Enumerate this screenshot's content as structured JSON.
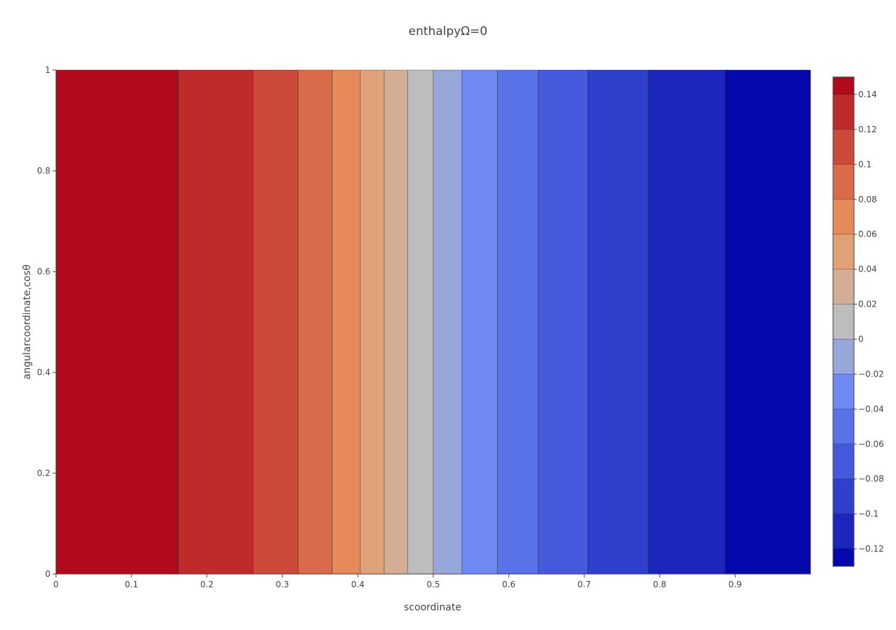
{
  "chart_data": {
    "type": "heatmap",
    "subtype": "contour",
    "title": "enthalpyΩ=0",
    "xlabel": "scoordinate",
    "ylabel": "angularcoordinate,cosθ",
    "xlim": [
      0,
      1
    ],
    "ylim": [
      0,
      1
    ],
    "x_ticks": [
      "0",
      "0.1",
      "0.2",
      "0.3",
      "0.4",
      "0.5",
      "0.6",
      "0.7",
      "0.8",
      "0.9"
    ],
    "x_tick_values": [
      0,
      0.1,
      0.2,
      0.3,
      0.4,
      0.5,
      0.6,
      0.7,
      0.8,
      0.9
    ],
    "y_ticks": [
      "0",
      "0.2",
      "0.4",
      "0.6",
      "0.8",
      "1"
    ],
    "y_tick_values": [
      0,
      0.2,
      0.4,
      0.6,
      0.8,
      1
    ],
    "bands": [
      {
        "x0": 0,
        "x1": 0.162,
        "color": "#b10a1c"
      },
      {
        "x0": 0.162,
        "x1": 0.261,
        "color": "#bf2a2b"
      },
      {
        "x0": 0.261,
        "x1": 0.321,
        "color": "#cc4a3a"
      },
      {
        "x0": 0.321,
        "x1": 0.366,
        "color": "#d96b4a"
      },
      {
        "x0": 0.366,
        "x1": 0.403,
        "color": "#e68a5a"
      },
      {
        "x0": 0.403,
        "x1": 0.435,
        "color": "#e0a176"
      },
      {
        "x0": 0.435,
        "x1": 0.466,
        "color": "#d3ae94"
      },
      {
        "x0": 0.466,
        "x1": 0.5,
        "color": "#bdbdbd"
      },
      {
        "x0": 0.5,
        "x1": 0.538,
        "color": "#97a7da"
      },
      {
        "x0": 0.538,
        "x1": 0.585,
        "color": "#6e8af2"
      },
      {
        "x0": 0.585,
        "x1": 0.639,
        "color": "#5872e8"
      },
      {
        "x0": 0.639,
        "x1": 0.705,
        "color": "#4459dc"
      },
      {
        "x0": 0.705,
        "x1": 0.785,
        "color": "#2f40cd"
      },
      {
        "x0": 0.785,
        "x1": 0.887,
        "color": "#1b27bc"
      },
      {
        "x0": 0.887,
        "x1": 1.0,
        "color": "#0509ad"
      }
    ],
    "colorbar": {
      "range": [
        -0.13,
        0.15
      ],
      "ticks": [
        "0.14",
        "0.12",
        "0.1",
        "0.08",
        "0.06",
        "0.04",
        "0.02",
        "0",
        "−0.02",
        "−0.04",
        "−0.06",
        "−0.08",
        "−0.1",
        "−0.12"
      ],
      "tick_values": [
        0.14,
        0.12,
        0.1,
        0.08,
        0.06,
        0.04,
        0.02,
        0,
        -0.02,
        -0.04,
        -0.06,
        -0.08,
        -0.1,
        -0.12
      ],
      "levels": [
        {
          "lo": 0.14,
          "hi": 0.15,
          "color": "#b10a1c"
        },
        {
          "lo": 0.12,
          "hi": 0.14,
          "color": "#bf2a2b"
        },
        {
          "lo": 0.1,
          "hi": 0.12,
          "color": "#cc4a3a"
        },
        {
          "lo": 0.08,
          "hi": 0.1,
          "color": "#d96b4a"
        },
        {
          "lo": 0.06,
          "hi": 0.08,
          "color": "#e68a5a"
        },
        {
          "lo": 0.04,
          "hi": 0.06,
          "color": "#e0a176"
        },
        {
          "lo": 0.02,
          "hi": 0.04,
          "color": "#d3ae94"
        },
        {
          "lo": 0.0,
          "hi": 0.02,
          "color": "#bdbdbd"
        },
        {
          "lo": -0.02,
          "hi": 0.0,
          "color": "#97a7da"
        },
        {
          "lo": -0.04,
          "hi": -0.02,
          "color": "#6e8af2"
        },
        {
          "lo": -0.06,
          "hi": -0.04,
          "color": "#5872e8"
        },
        {
          "lo": -0.08,
          "hi": -0.06,
          "color": "#4459dc"
        },
        {
          "lo": -0.1,
          "hi": -0.08,
          "color": "#2f40cd"
        },
        {
          "lo": -0.12,
          "hi": -0.1,
          "color": "#1b27bc"
        },
        {
          "lo": -0.13,
          "hi": -0.12,
          "color": "#0509ad"
        }
      ]
    }
  }
}
